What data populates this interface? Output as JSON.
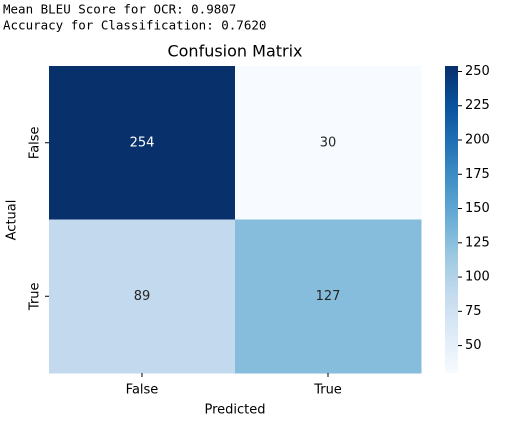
{
  "output_lines": [
    "Mean BLEU Score for OCR: 0.9807",
    "Accuracy for Classification: 0.7620"
  ],
  "chart_data": {
    "type": "heatmap",
    "title": "Confusion Matrix",
    "xlabel": "Predicted",
    "ylabel": "Actual",
    "x_categories": [
      "False",
      "True"
    ],
    "y_categories": [
      "False",
      "True"
    ],
    "values": [
      [
        254,
        30
      ],
      [
        89,
        127
      ]
    ],
    "zlim": [
      30,
      254
    ],
    "zticks": [
      50,
      75,
      100,
      125,
      150,
      175,
      200,
      225,
      250
    ],
    "colormap": [
      "#f7fbff",
      "#deebf7",
      "#c6dbef",
      "#9ecae1",
      "#6baed6",
      "#4292c6",
      "#2171b5",
      "#08519c",
      "#08306b"
    ]
  }
}
